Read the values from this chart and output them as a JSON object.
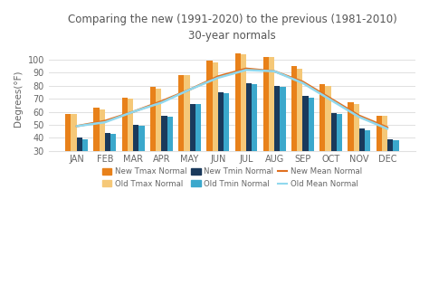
{
  "months": [
    "JAN",
    "FEB",
    "MAR",
    "APR",
    "MAY",
    "JUN",
    "JUL",
    "AUG",
    "SEP",
    "OCT",
    "NOV",
    "DEC"
  ],
  "new_tmax": [
    58,
    63,
    71,
    79,
    88,
    99,
    105,
    102,
    95,
    81,
    67,
    57
  ],
  "old_tmax": [
    58,
    62,
    70,
    78,
    88,
    98,
    104,
    102,
    93,
    80,
    66,
    57
  ],
  "new_tmin": [
    40,
    44,
    50,
    57,
    66,
    75,
    82,
    80,
    72,
    59,
    47,
    39
  ],
  "old_tmin": [
    39,
    43,
    49,
    56,
    66,
    74,
    81,
    79,
    71,
    58,
    46,
    38
  ],
  "new_mean": [
    49,
    53,
    60,
    68,
    77,
    87,
    93,
    91,
    83,
    70,
    57,
    48
  ],
  "old_mean": [
    49,
    52,
    60,
    67,
    77,
    86,
    92,
    91,
    82,
    69,
    56,
    47
  ],
  "title_line1": "Comparing the new (1991-2020) to the previous (1981-2010)",
  "title_line2": "30-year normals",
  "ylabel": "Degrees(°F)",
  "ylim": [
    30,
    110
  ],
  "yticks": [
    30,
    40,
    50,
    60,
    70,
    80,
    90,
    100
  ],
  "color_new_tmax": "#E8811A",
  "color_old_tmax": "#F5C878",
  "color_new_tmin": "#1A3A5C",
  "color_old_tmin": "#3BA8CC",
  "color_new_mean": "#E07020",
  "color_old_mean": "#90D8EE",
  "bg_color": "#FFFFFF",
  "grid_color": "#E0E0E0",
  "title_color": "#555555",
  "label_color": "#666666"
}
